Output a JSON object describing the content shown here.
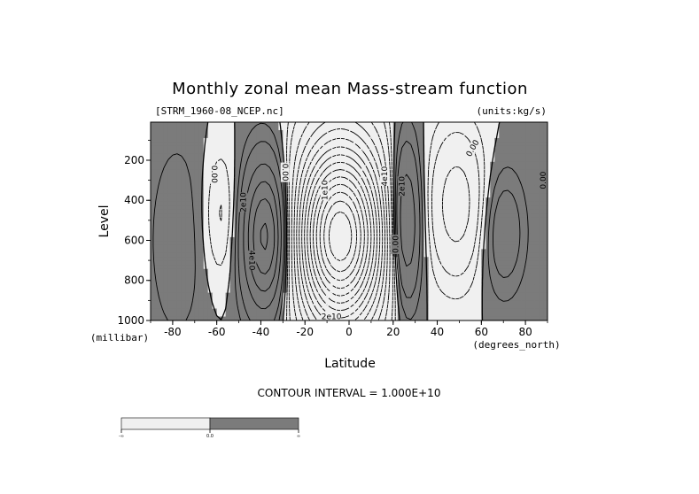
{
  "chart_data": {
    "type": "contour",
    "title": "Monthly zonal mean Mass-stream function",
    "subtitle_left": "[STRM_1960-08_NCEP.nc]",
    "subtitle_right": "(units:kg/s)",
    "xlabel": "Latitude",
    "ylabel": "Level",
    "x_unit": "(degrees_north)",
    "y_unit": "(millibar)",
    "xlim": [
      -90,
      90
    ],
    "ylim": [
      1000,
      10
    ],
    "y_reversed": true,
    "x_ticks": [
      -80,
      -60,
      -40,
      -20,
      0,
      20,
      40,
      60,
      80
    ],
    "y_ticks": [
      200,
      400,
      600,
      800,
      1000
    ],
    "contour_interval_text": "CONTOUR INTERVAL = 1.000E+10",
    "contour_interval": 10000000000,
    "fill_colors": {
      "negative": "#f0f0f0",
      "positive": "#7b7b7b"
    },
    "colorbar": {
      "tick_labels": [
        "-∞",
        "0.0",
        "∞"
      ]
    },
    "contour_labels": [
      {
        "text": "0.00",
        "x": -61,
        "y": 270,
        "rot": 90
      },
      {
        "text": "0.00",
        "x": -29,
        "y": 260,
        "rot": 90
      },
      {
        "text": "2e10",
        "x": -48,
        "y": 410,
        "rot": -90
      },
      {
        "text": "4e10",
        "x": -44,
        "y": 700,
        "rot": 90
      },
      {
        "text": "1e10",
        "x": -11,
        "y": 350,
        "rot": -90
      },
      {
        "text": "4e10",
        "x": 16,
        "y": 280,
        "rot": -90
      },
      {
        "text": "2e10",
        "x": 24,
        "y": 330,
        "rot": -90
      },
      {
        "text": "0.00",
        "x": 21,
        "y": 620,
        "rot": -90
      },
      {
        "text": "0.00",
        "x": 56,
        "y": 140,
        "rot": -60
      },
      {
        "text": "0.00",
        "x": 88,
        "y": 300,
        "rot": -90
      },
      {
        "text": "2e10",
        "x": -8,
        "y": 980,
        "rot": 0
      }
    ]
  },
  "field_centers": [
    {
      "x": -37,
      "p": 580,
      "amp": 6,
      "sx": 8,
      "sp": 270
    },
    {
      "x": -4,
      "p": 580,
      "amp": -15,
      "sx": 14,
      "sp": 330
    },
    {
      "x": 25,
      "p": 520,
      "amp": 4.5,
      "sx": 5.5,
      "sp": 290
    },
    {
      "x": 49,
      "p": 420,
      "amp": -2.6,
      "sx": 9,
      "sp": 260
    },
    {
      "x": 70,
      "p": 560,
      "amp": 1.8,
      "sx": 7,
      "sp": 220
    },
    {
      "x": -58,
      "p": 480,
      "amp": -1.3,
      "sx": 6,
      "sp": 240
    },
    {
      "x": -78,
      "p": 600,
      "amp": 0.9,
      "sx": 10,
      "sp": 400
    }
  ]
}
